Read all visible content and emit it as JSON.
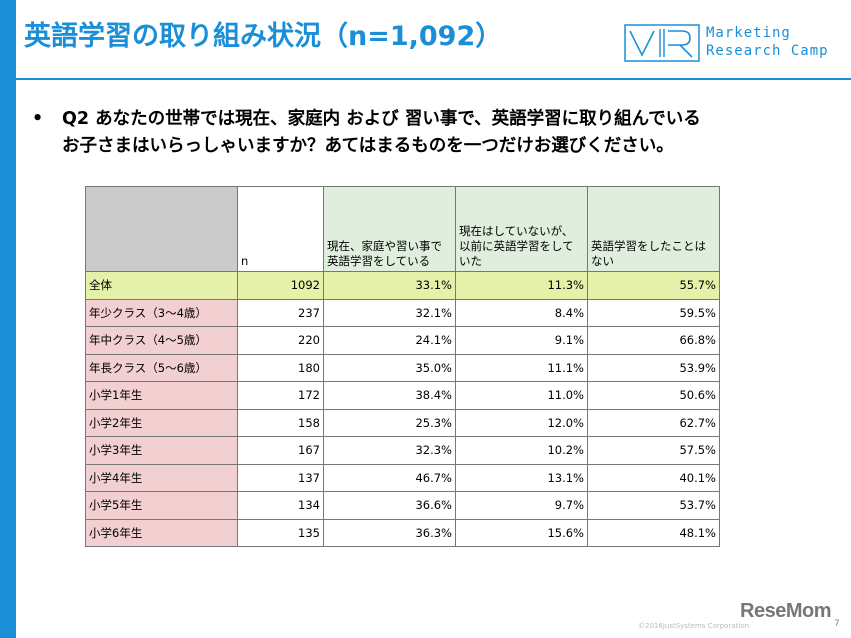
{
  "slide": {
    "title": "英語学習の取り組み状況（n=1,092）",
    "logo_line1": "Marketing",
    "logo_line2": "Research Camp",
    "bullet": "•",
    "question_line1": "Q2 あなたの世帯では現在、家庭内 および 習い事で、英語学習に取り組んでいる",
    "question_line2": "お子さまはいらっしゃいますか？あてはまるものを一つだけお選びください。",
    "copyright": "©2016JustSystems Corporation",
    "page_number": "7",
    "watermark": "ReseMom"
  },
  "table": {
    "headers": [
      "",
      "n",
      "現在、家庭や習い事で英語学習をしている",
      "現在はしていないが、以前に英語学習をしていた",
      "英語学習をしたことはない"
    ],
    "total": {
      "label": "全体",
      "n": "1092",
      "c1": "33.1%",
      "c2": "11.3%",
      "c3": "55.7%"
    },
    "rows": [
      {
        "label": "年少クラス（3～4歳）",
        "n": "237",
        "c1": "32.1%",
        "c2": "8.4%",
        "c3": "59.5%"
      },
      {
        "label": "年中クラス（4～5歳）",
        "n": "220",
        "c1": "24.1%",
        "c2": "9.1%",
        "c3": "66.8%"
      },
      {
        "label": "年長クラス（5～6歳）",
        "n": "180",
        "c1": "35.0%",
        "c2": "11.1%",
        "c3": "53.9%"
      },
      {
        "label": "小学1年生",
        "n": "172",
        "c1": "38.4%",
        "c2": "11.0%",
        "c3": "50.6%"
      },
      {
        "label": "小学2年生",
        "n": "158",
        "c1": "25.3%",
        "c2": "12.0%",
        "c3": "62.7%"
      },
      {
        "label": "小学3年生",
        "n": "167",
        "c1": "32.3%",
        "c2": "10.2%",
        "c3": "57.5%"
      },
      {
        "label": "小学4年生",
        "n": "137",
        "c1": "46.7%",
        "c2": "13.1%",
        "c3": "40.1%"
      },
      {
        "label": "小学5年生",
        "n": "134",
        "c1": "36.6%",
        "c2": "9.7%",
        "c3": "53.7%"
      },
      {
        "label": "小学6年生",
        "n": "135",
        "c1": "36.3%",
        "c2": "15.6%",
        "c3": "48.1%"
      }
    ]
  },
  "colors": {
    "accent": "#1a8fd8",
    "header_bg": "#dfeedd",
    "corner_bg": "#cbcbcb",
    "total_bg": "#e5f0a8",
    "label_bg": "#f2cfd1"
  }
}
